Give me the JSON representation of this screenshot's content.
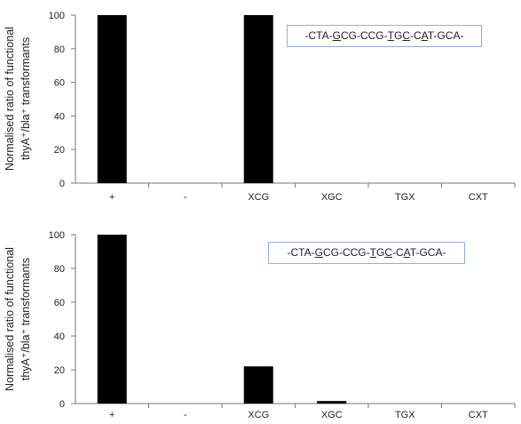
{
  "chart_data": [
    {
      "type": "bar",
      "categories": [
        "+",
        "-",
        "XCG",
        "XGC",
        "TGX",
        "CXT"
      ],
      "values": [
        100,
        0,
        100,
        0,
        0,
        0
      ],
      "ylabel": [
        "Normalised ratio of functional",
        "thyA⁺/bla⁺ transformants"
      ],
      "yticks": [
        "0",
        "20",
        "40",
        "60",
        "80",
        "100"
      ],
      "ylim": [
        0,
        100
      ],
      "grid": false,
      "bar_color": "#000000",
      "annotation": [
        {
          "t": "-CTA-",
          "u": false
        },
        {
          "t": "G",
          "u": true
        },
        {
          "t": "CG-CCG-",
          "u": false
        },
        {
          "t": "T",
          "u": true
        },
        {
          "t": "G",
          "u": false
        },
        {
          "t": "C",
          "u": true
        },
        {
          "t": "-C",
          "u": false
        },
        {
          "t": "A",
          "u": true
        },
        {
          "t": "T-GCA-",
          "u": false
        }
      ]
    },
    {
      "type": "bar",
      "categories": [
        "+",
        "-",
        "XCG",
        "XGC",
        "TGX",
        "CXT"
      ],
      "values": [
        100,
        0,
        22,
        1.5,
        0,
        0
      ],
      "ylabel": [
        "Normalised ratio of functional",
        "thyA⁺/bla⁺ transformants"
      ],
      "yticks": [
        "0",
        "20",
        "40",
        "60",
        "80",
        "100"
      ],
      "ylim": [
        0,
        100
      ],
      "grid": false,
      "bar_color": "#000000",
      "annotation": [
        {
          "t": "-CTA-",
          "u": false
        },
        {
          "t": "G",
          "u": true
        },
        {
          "t": "CG-CCG-",
          "u": false
        },
        {
          "t": "T",
          "u": true
        },
        {
          "t": "G",
          "u": false
        },
        {
          "t": "C",
          "u": true
        },
        {
          "t": "-C",
          "u": false
        },
        {
          "t": "A",
          "u": true
        },
        {
          "t": "T-GCA-",
          "u": false
        }
      ]
    }
  ]
}
